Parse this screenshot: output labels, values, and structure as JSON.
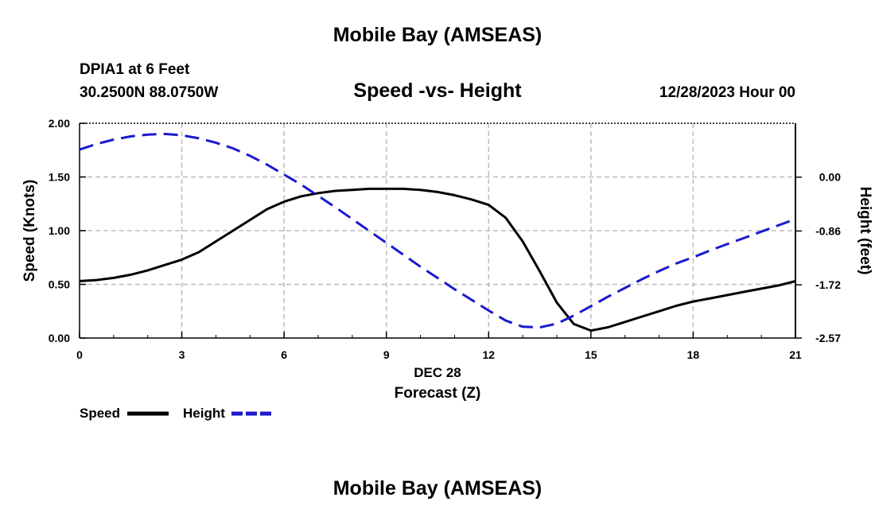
{
  "header": {
    "title": "Mobile Bay (AMSEAS)",
    "station": "DPIA1 at 6 Feet",
    "coords": "30.2500N  88.0750W",
    "chart_title": "Speed -vs- Height",
    "datetime": "12/28/2023 Hour 00"
  },
  "footer": {
    "title": "Mobile Bay (AMSEAS)"
  },
  "colors": {
    "speed": "#000000",
    "height": "#1a1acc",
    "grid": "#bbbbbb"
  },
  "chart_data": {
    "type": "line",
    "title": "Speed -vs- Height",
    "xlabel": "Forecast (Z)",
    "xsublabel": "DEC 28",
    "ylabel": "Speed (Knots)",
    "y2label": "Height (feet)",
    "xlim": [
      0,
      21
    ],
    "ylim": [
      0,
      2
    ],
    "y2lim": [
      -2.57,
      0.86
    ],
    "x_ticks": [
      0,
      3,
      6,
      9,
      12,
      15,
      18,
      21
    ],
    "x_tick_labels": [
      "0",
      "3",
      "6",
      "9",
      "12",
      "15",
      "18",
      "21"
    ],
    "y_ticks": [
      0,
      0.5,
      1,
      1.5,
      2
    ],
    "y_tick_labels": [
      "0.00",
      "0.50",
      "1.00",
      "1.50",
      "2.00"
    ],
    "y2_ticks": [
      -2.57,
      -1.72,
      -0.86,
      0.0
    ],
    "y2_tick_labels": [
      "-2.57",
      "-1.72",
      "-0.86",
      "0.00"
    ],
    "grid": true,
    "legend_position": "bottom-left",
    "series": [
      {
        "name": "Speed",
        "axis": "left",
        "style": "solid",
        "x": [
          0,
          0.5,
          1,
          1.5,
          2,
          2.5,
          3,
          3.5,
          4,
          4.5,
          5,
          5.5,
          6,
          6.5,
          7,
          7.5,
          8,
          8.5,
          9,
          9.5,
          10,
          10.5,
          11,
          11.5,
          12,
          12.5,
          13,
          13.5,
          14,
          14.5,
          15,
          15.5,
          16,
          16.5,
          17,
          17.5,
          18,
          18.5,
          19,
          19.5,
          20,
          20.5,
          21
        ],
        "values": [
          0.53,
          0.54,
          0.56,
          0.59,
          0.63,
          0.68,
          0.73,
          0.8,
          0.9,
          1.0,
          1.1,
          1.2,
          1.27,
          1.32,
          1.35,
          1.37,
          1.38,
          1.39,
          1.39,
          1.39,
          1.38,
          1.36,
          1.33,
          1.29,
          1.24,
          1.12,
          0.9,
          0.62,
          0.33,
          0.13,
          0.07,
          0.1,
          0.15,
          0.2,
          0.25,
          0.3,
          0.34,
          0.37,
          0.4,
          0.43,
          0.46,
          0.49,
          0.53
        ]
      },
      {
        "name": "Height",
        "axis": "right",
        "style": "dashed",
        "x": [
          0,
          0.5,
          1,
          1.5,
          2,
          2.5,
          3,
          3.5,
          4,
          4.5,
          5,
          5.5,
          6,
          6.5,
          7,
          7.5,
          8,
          8.5,
          9,
          9.5,
          10,
          10.5,
          11,
          11.5,
          12,
          12.5,
          13,
          13.5,
          14,
          14.5,
          15,
          15.5,
          16,
          16.5,
          17,
          17.5,
          18,
          18.5,
          19,
          19.5,
          20,
          20.5,
          21
        ],
        "values": [
          0.44,
          0.53,
          0.6,
          0.65,
          0.68,
          0.69,
          0.67,
          0.62,
          0.55,
          0.46,
          0.34,
          0.2,
          0.04,
          -0.12,
          -0.3,
          -0.48,
          -0.67,
          -0.86,
          -1.05,
          -1.24,
          -1.43,
          -1.61,
          -1.79,
          -1.96,
          -2.13,
          -2.29,
          -2.39,
          -2.4,
          -2.34,
          -2.21,
          -2.06,
          -1.91,
          -1.77,
          -1.63,
          -1.5,
          -1.38,
          -1.28,
          -1.17,
          -1.07,
          -0.97,
          -0.87,
          -0.77,
          -0.67
        ]
      }
    ]
  }
}
